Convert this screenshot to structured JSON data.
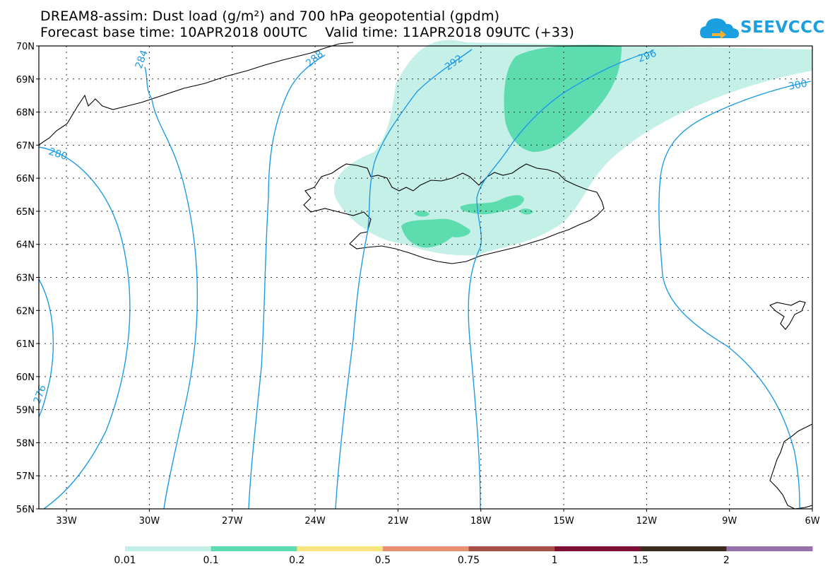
{
  "title_line1": "DREAM8-assim: Dust load (g/m²) and 700 hPa geopotential (gpdm)",
  "title_line2": "Forecast base time: 10APR2018 00UTC    Valid time: 11APR2018 09UTC (+33)",
  "logo_text": "SEEVCCC",
  "lat_labels": [
    "70N",
    "69N",
    "68N",
    "67N",
    "66N",
    "65N",
    "64N",
    "63N",
    "62N",
    "61N",
    "60N",
    "59N",
    "58N",
    "57N",
    "56N"
  ],
  "lon_labels": [
    "33W",
    "30W",
    "27W",
    "24W",
    "21W",
    "18W",
    "15W",
    "12W",
    "9W",
    "6W"
  ],
  "contour_labels": [
    "276",
    "280",
    "284",
    "288",
    "292",
    "296",
    "300"
  ],
  "colorbar": {
    "colors": [
      "#c4f0e8",
      "#5ddcb0",
      "#f7e680",
      "#e89070",
      "#a85048",
      "#7e1035",
      "#3a2a20",
      "#9670a8"
    ],
    "labels": [
      "0.01",
      "0.1",
      "0.2",
      "0.5",
      "0.75",
      "1",
      "1.5",
      "2"
    ]
  },
  "map": {
    "lat_range": [
      56,
      70
    ],
    "lon_range": [
      -34,
      -6
    ],
    "grid": true
  }
}
